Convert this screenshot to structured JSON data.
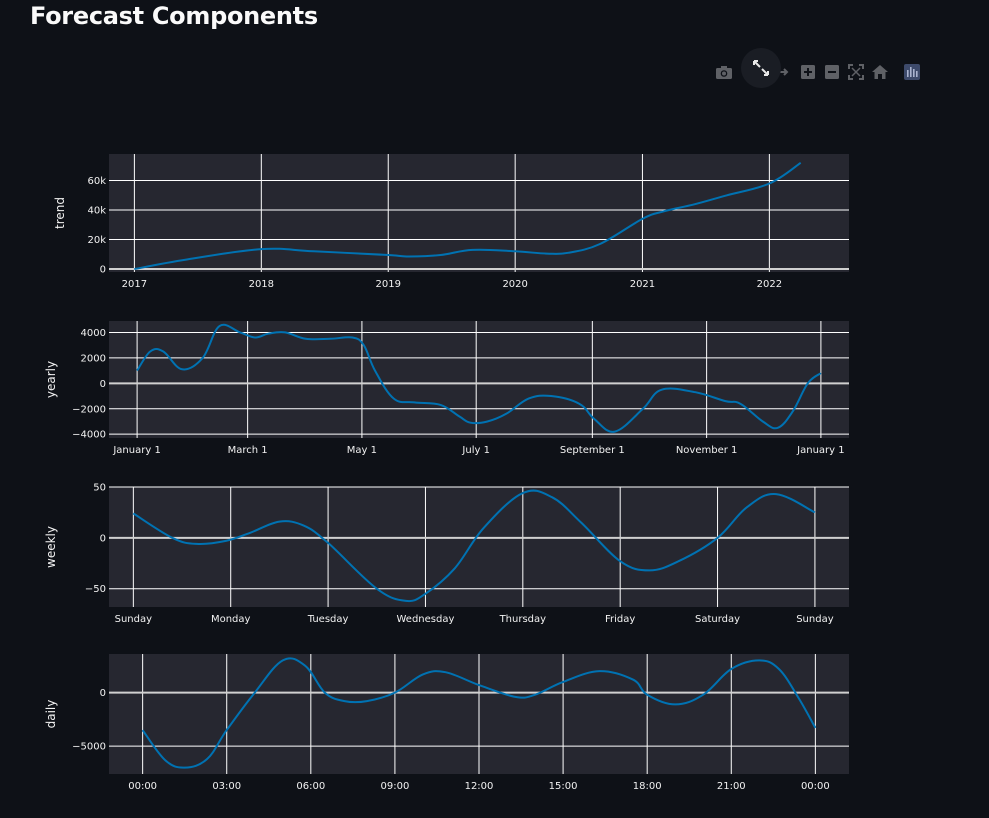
{
  "page": {
    "title": "Forecast Components"
  },
  "modebar": {
    "icons": [
      "camera-icon",
      "zoom-icon",
      "pan-icon",
      "zoom-in-icon",
      "zoom-out-icon",
      "autoscale-icon",
      "reset-axes-icon",
      "plotly-logo-icon"
    ],
    "expand_icon": "fullscreen-expand-icon"
  },
  "colors": {
    "background": "#0e1117",
    "plot_bg": "#262730",
    "grid": "#ffffff",
    "line": "#0072B2",
    "modebar_icon": "#5f6166"
  },
  "chart_data": [
    {
      "type": "line",
      "ylabel": "trend",
      "xtype": "date",
      "x": [
        "2017-01-01",
        "2017-06-01",
        "2018-01-01",
        "2018-06-01",
        "2019-01-01",
        "2019-03-01",
        "2019-06-01",
        "2019-09-01",
        "2020-01-01",
        "2020-04-01",
        "2020-06-01",
        "2020-09-01",
        "2021-01-01",
        "2021-03-01",
        "2021-06-01",
        "2021-09-01",
        "2022-01-01",
        "2022-04-01"
      ],
      "y": [
        0,
        6500,
        13500,
        12000,
        9500,
        8500,
        9500,
        13000,
        12000,
        10500,
        11000,
        17000,
        34000,
        39000,
        44000,
        50000,
        58000,
        72000
      ],
      "xlim": [
        "2016-10-20",
        "2022-08-18"
      ],
      "ylim": [
        -2000,
        78000
      ],
      "xticks": [
        {
          "v": "2017-01-01",
          "label": "2017"
        },
        {
          "v": "2018-01-01",
          "label": "2018"
        },
        {
          "v": "2019-01-01",
          "label": "2019"
        },
        {
          "v": "2020-01-01",
          "label": "2020"
        },
        {
          "v": "2021-01-01",
          "label": "2021"
        },
        {
          "v": "2022-01-01",
          "label": "2022"
        }
      ],
      "yticks": [
        {
          "v": 0,
          "label": "0"
        },
        {
          "v": 20000,
          "label": "20k"
        },
        {
          "v": 40000,
          "label": "40k"
        },
        {
          "v": 60000,
          "label": "60k"
        }
      ],
      "grid": true
    },
    {
      "type": "line",
      "ylabel": "yearly",
      "xtype": "dayofyear",
      "x": [
        0,
        7,
        14,
        24,
        35,
        44,
        55,
        63,
        70,
        79,
        90,
        103,
        115,
        121,
        127,
        137,
        148,
        162,
        172,
        178,
        187,
        197,
        209,
        221,
        236,
        244,
        255,
        270,
        280,
        298,
        314,
        322,
        334,
        342,
        350,
        358,
        365
      ],
      "y": [
        1000,
        2500,
        2500,
        1100,
        2000,
        4500,
        4000,
        3600,
        3900,
        4000,
        3500,
        3500,
        3600,
        3000,
        1000,
        -1200,
        -1500,
        -1700,
        -2600,
        -3100,
        -3000,
        -2400,
        -1200,
        -1000,
        -1600,
        -2800,
        -3800,
        -2000,
        -500,
        -700,
        -1400,
        -1600,
        -3000,
        -3500,
        -2200,
        0,
        800
      ],
      "xlim": [
        -15,
        380
      ],
      "ylim": [
        -4300,
        4900
      ],
      "xticks": [
        {
          "v": 0,
          "label": "January 1"
        },
        {
          "v": 59,
          "label": "March 1"
        },
        {
          "v": 120,
          "label": "May 1"
        },
        {
          "v": 181,
          "label": "July 1"
        },
        {
          "v": 243,
          "label": "September 1"
        },
        {
          "v": 304,
          "label": "November 1"
        },
        {
          "v": 365,
          "label": "January 1"
        }
      ],
      "yticks": [
        {
          "v": -4000,
          "label": "−4000"
        },
        {
          "v": -2000,
          "label": "−2000"
        },
        {
          "v": 0,
          "label": "0"
        },
        {
          "v": 2000,
          "label": "2000"
        },
        {
          "v": 4000,
          "label": "4000"
        }
      ],
      "grid": true
    },
    {
      "type": "line",
      "ylabel": "weekly",
      "xtype": "day",
      "x": [
        0,
        0.4,
        0.65,
        0.95,
        1.2,
        1.5,
        1.75,
        2.0,
        2.5,
        2.8,
        3.0,
        3.3,
        3.6,
        4.0,
        4.3,
        4.6,
        5.0,
        5.3,
        5.6,
        6.0,
        6.3,
        6.6,
        7.0
      ],
      "y": [
        24,
        0,
        -6,
        -3,
        5,
        16,
        12,
        -5,
        -50,
        -62,
        -55,
        -30,
        10,
        44,
        40,
        15,
        -23,
        -32,
        -23,
        0,
        30,
        43,
        25
      ],
      "xlim": [
        -0.25,
        7.35
      ],
      "ylim": [
        -68,
        50
      ],
      "xticks": [
        {
          "v": 0,
          "label": "Sunday"
        },
        {
          "v": 1,
          "label": "Monday"
        },
        {
          "v": 2,
          "label": "Tuesday"
        },
        {
          "v": 3,
          "label": "Wednesday"
        },
        {
          "v": 4,
          "label": "Thursday"
        },
        {
          "v": 5,
          "label": "Friday"
        },
        {
          "v": 6,
          "label": "Saturday"
        },
        {
          "v": 7,
          "label": "Sunday"
        }
      ],
      "yticks": [
        {
          "v": -50,
          "label": "−50"
        },
        {
          "v": 0,
          "label": "0"
        },
        {
          "v": 50,
          "label": "50"
        }
      ],
      "grid": true
    },
    {
      "type": "line",
      "ylabel": "daily",
      "xtype": "hour",
      "x": [
        0,
        0.8,
        1.5,
        2.3,
        3.0,
        4.0,
        5.0,
        5.8,
        6.5,
        7.2,
        8.0,
        9.0,
        10.0,
        10.8,
        12.0,
        13.3,
        14.0,
        15.0,
        16.3,
        17.5,
        18.0,
        19.0,
        20.0,
        21.0,
        22.0,
        22.7,
        23.4,
        24.0
      ],
      "y": [
        -3500,
        -6300,
        -7000,
        -6200,
        -3500,
        0,
        3000,
        2500,
        0,
        -800,
        -800,
        0,
        1700,
        1900,
        700,
        -400,
        -200,
        1000,
        2000,
        1200,
        -200,
        -1100,
        -200,
        2200,
        3000,
        2200,
        -500,
        -3300
      ],
      "xlim": [
        -1.2,
        25.2
      ],
      "ylim": [
        -7600,
        3600
      ],
      "xticks": [
        {
          "v": 0,
          "label": "00:00"
        },
        {
          "v": 3,
          "label": "03:00"
        },
        {
          "v": 6,
          "label": "06:00"
        },
        {
          "v": 9,
          "label": "09:00"
        },
        {
          "v": 12,
          "label": "12:00"
        },
        {
          "v": 15,
          "label": "15:00"
        },
        {
          "v": 18,
          "label": "18:00"
        },
        {
          "v": 21,
          "label": "21:00"
        },
        {
          "v": 24,
          "label": "00:00"
        }
      ],
      "yticks": [
        {
          "v": -5000,
          "label": "−5000"
        },
        {
          "v": 0,
          "label": "0"
        }
      ],
      "grid": true
    }
  ]
}
